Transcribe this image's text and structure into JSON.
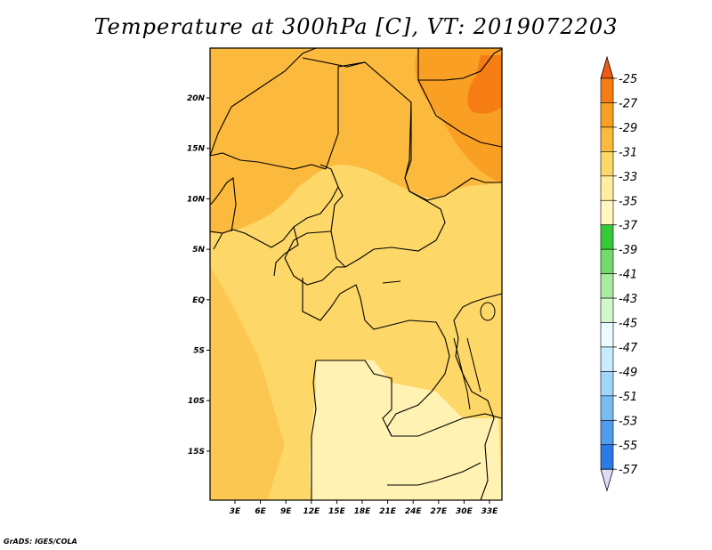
{
  "title": "Temperature at 300hPa [C], VT: 2019072203",
  "credit": "GrADS: IGES/COLA",
  "map": {
    "lat_ticks": [
      "20N",
      "15N",
      "10N",
      "5N",
      "EQ",
      "5S",
      "10S",
      "15S"
    ],
    "lon_ticks": [
      "3E",
      "6E",
      "9E",
      "12E",
      "15E",
      "18E",
      "21E",
      "24E",
      "27E",
      "30E",
      "33E"
    ]
  },
  "colorbar": {
    "labels": [
      "-25",
      "-27",
      "-29",
      "-31",
      "-33",
      "-35",
      "-37",
      "-39",
      "-41",
      "-43",
      "-45",
      "-47",
      "-49",
      "-51",
      "-53",
      "-55",
      "-57"
    ],
    "colors": {
      "warm_top": "#f05a14",
      "c1": "#f57d14",
      "c2": "#f99f23",
      "c3": "#fbb93d",
      "c4": "#fdd768",
      "c5": "#ffeda0",
      "c6": "#fff7bf",
      "g1": "#36c93a",
      "g2": "#72db6a",
      "g3": "#a7eb9c",
      "g4": "#d3f7cb",
      "b0": "#ecfbfd",
      "b1": "#c8ecfb",
      "b2": "#a0d6f8",
      "b3": "#79bcf4",
      "b4": "#4f9cf0",
      "b5": "#2b7be6",
      "b6": "#1a59d2",
      "b7": "#0e3aa6",
      "b8": "#0c1e74",
      "bottom": "#dcdcf6"
    }
  }
}
